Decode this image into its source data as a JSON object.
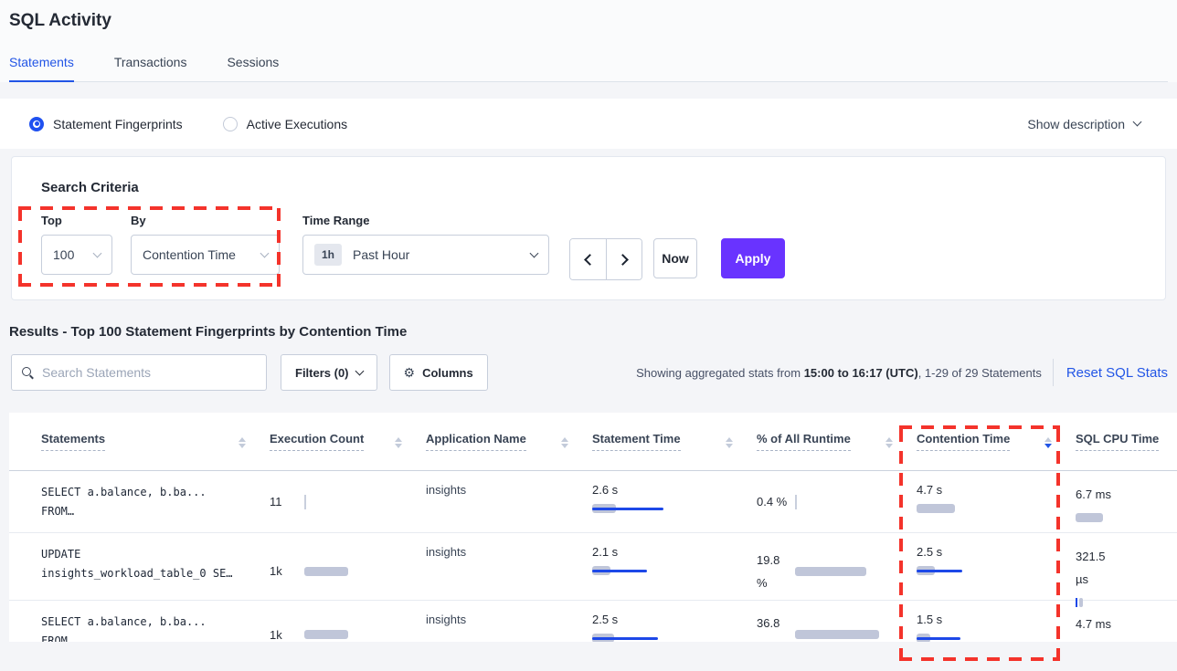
{
  "page": {
    "title": "SQL Activity"
  },
  "tabs": [
    {
      "label": "Statements",
      "active": true
    },
    {
      "label": "Transactions",
      "active": false
    },
    {
      "label": "Sessions",
      "active": false
    }
  ],
  "view_toggle": {
    "options": [
      {
        "label": "Statement Fingerprints",
        "selected": true
      },
      {
        "label": "Active Executions",
        "selected": false
      }
    ],
    "show_description": "Show description"
  },
  "search_criteria": {
    "heading": "Search Criteria",
    "top": {
      "label": "Top",
      "value": "100"
    },
    "by": {
      "label": "By",
      "value": "Contention Time"
    },
    "time_range": {
      "label": "Time Range",
      "badge": "1h",
      "value": "Past Hour"
    },
    "now_label": "Now",
    "apply_label": "Apply"
  },
  "results": {
    "heading": "Results - Top 100 Statement Fingerprints by Contention Time",
    "search_placeholder": "Search Statements",
    "filters_label": "Filters (0)",
    "columns_label": "Columns",
    "stats_prefix": "Showing aggregated stats from ",
    "stats_bold": "15:00 to 16:17 (UTC)",
    "stats_suffix": ", 1-29 of 29 Statements",
    "reset_link": "Reset SQL Stats"
  },
  "accent_colors": {
    "link_blue": "#2255E6",
    "apply_purple": "#6933FF",
    "bar_gray": "#C0C6D9",
    "bar_blue": "#1D48E8",
    "annotation_red": "#F4332B"
  },
  "table": {
    "columns": [
      {
        "label": "Statements",
        "sort": "none"
      },
      {
        "label": "Execution Count",
        "sort": "none"
      },
      {
        "label": "Application Name",
        "sort": "none"
      },
      {
        "label": "Statement Time",
        "sort": "none"
      },
      {
        "label": "% of All Runtime",
        "sort": "none"
      },
      {
        "label": "Contention Time",
        "sort": "desc"
      },
      {
        "label": "SQL CPU Time",
        "sort": "none"
      }
    ],
    "rows": [
      {
        "stmt_line1": "SELECT a.balance, b.ba...",
        "stmt_line2": "FROM…",
        "exec": {
          "text": "11",
          "tick": "gray"
        },
        "app": "insights",
        "stmt_time": {
          "text": "2.6 s",
          "gray": 26,
          "blue": 78
        },
        "pct": {
          "line1": "0.4 %",
          "line2": "",
          "tick": "gray"
        },
        "contention": {
          "text": "4.7 s",
          "gray": 42
        },
        "cpu": {
          "line1": "6.7 ms",
          "line2": "",
          "gray": 30
        }
      },
      {
        "stmt_line1": "UPDATE",
        "stmt_line2": "insights_workload_table_0 SE…",
        "exec": {
          "text": "1k",
          "gray": 48
        },
        "app": "insights",
        "stmt_time": {
          "text": "2.1 s",
          "gray": 20,
          "blue": 60
        },
        "pct": {
          "line1": "19.8",
          "line2": "%",
          "gray": 78
        },
        "contention": {
          "text": "2.5 s",
          "gray": 20,
          "blue": 50
        },
        "cpu": {
          "line1": "321.5",
          "line2": "µs",
          "gray": 4,
          "tick": "blue"
        }
      },
      {
        "stmt_line1": "SELECT a.balance, b.ba...",
        "stmt_line2": "FROM…",
        "exec": {
          "text": "1k",
          "gray": 48
        },
        "app": "insights",
        "stmt_time": {
          "text": "2.5 s",
          "gray": 24,
          "blue": 72
        },
        "pct": {
          "line1": "36.8",
          "line2": "%",
          "gray": 92
        },
        "contention": {
          "text": "1.5 s",
          "gray": 15,
          "blue": 48
        },
        "cpu": {
          "line1": "4.7 ms",
          "line2": "",
          "gray": 17,
          "blue": 58
        }
      }
    ]
  }
}
